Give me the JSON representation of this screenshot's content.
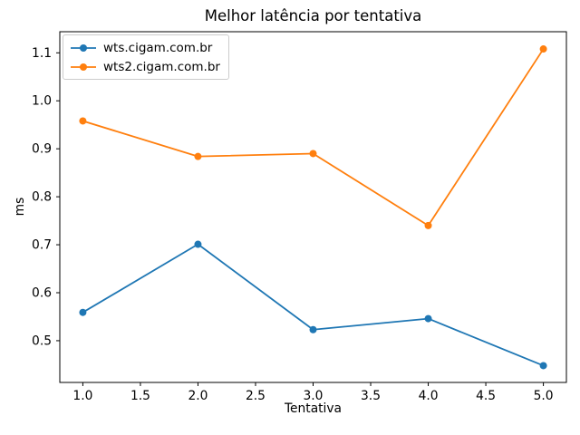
{
  "chart_data": {
    "type": "line",
    "title": "Melhor latência por tentativa",
    "xlabel": "Tentativa",
    "ylabel": "ms",
    "x": [
      1,
      2,
      3,
      4,
      5
    ],
    "series": [
      {
        "name": "wts.cigam.com.br",
        "color": "#1f77b4",
        "values": [
          0.559,
          0.701,
          0.523,
          0.546,
          0.448
        ]
      },
      {
        "name": "wts2.cigam.com.br",
        "color": "#ff7f0e",
        "values": [
          0.958,
          0.884,
          0.89,
          0.74,
          1.108
        ]
      }
    ],
    "xticks": {
      "values": [
        1,
        1.5,
        2,
        2.5,
        3,
        3.5,
        4,
        4.5,
        5
      ],
      "labels": [
        "1.0",
        "1.5",
        "2.0",
        "2.5",
        "3.0",
        "3.5",
        "4.0",
        "4.5",
        "5.0"
      ]
    },
    "yticks": {
      "values": [
        0.5,
        0.6,
        0.7,
        0.8,
        0.9,
        1.0,
        1.1
      ],
      "labels": [
        "0.5",
        "0.6",
        "0.7",
        "0.8",
        "0.9",
        "1.0",
        "1.1"
      ]
    },
    "xlim": [
      0.8,
      5.2
    ],
    "ylim": [
      0.413,
      1.144
    ],
    "legend_position": "upper left",
    "grid": false,
    "axis_color": "#000000",
    "background_color": "#ffffff"
  }
}
